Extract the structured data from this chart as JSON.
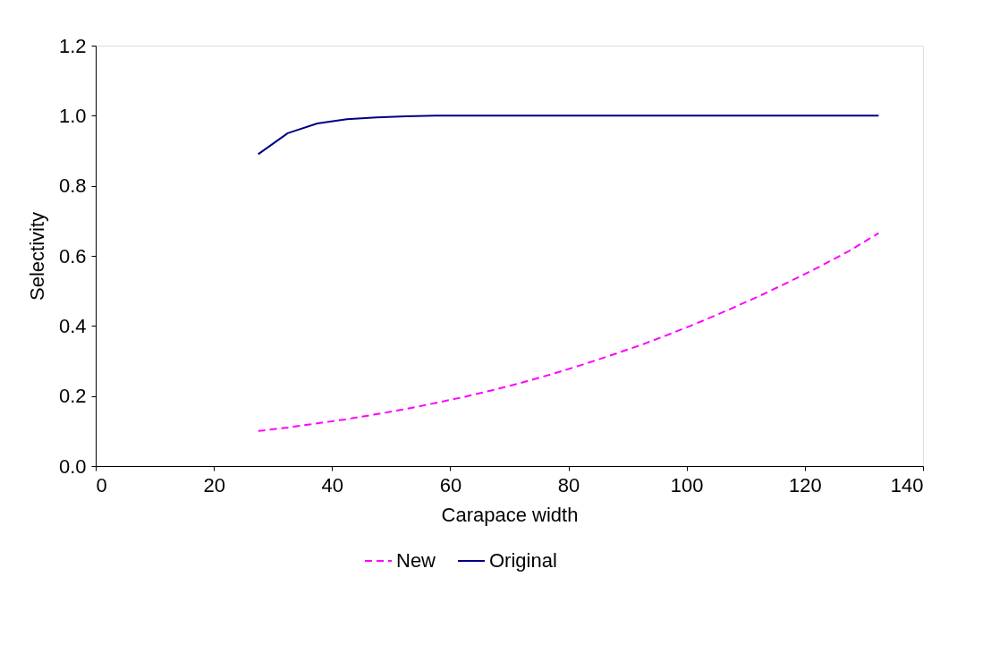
{
  "chart_data": {
    "type": "line",
    "xlabel": "Carapace width",
    "ylabel": "Selectivity",
    "xlim": [
      0,
      140
    ],
    "xticks": [
      0,
      20,
      40,
      60,
      80,
      100,
      120,
      140
    ],
    "ylim": [
      0,
      1.2
    ],
    "yticks": [
      {
        "value": 0,
        "label": "0.0"
      },
      {
        "value": 0.2,
        "label": "0.2"
      },
      {
        "value": 0.4,
        "label": "0.4"
      },
      {
        "value": 0.6,
        "label": "0.6"
      },
      {
        "value": 0.8,
        "label": "0.8"
      },
      {
        "value": 1.0,
        "label": "1.0"
      },
      {
        "value": 1.2,
        "label": "1.2"
      }
    ],
    "x": [
      27.5,
      32.5,
      37.5,
      42.5,
      47.5,
      52.5,
      57.5,
      62.5,
      67.5,
      72.5,
      77.5,
      82.5,
      87.5,
      92.5,
      97.5,
      102.5,
      107.5,
      112.5,
      117.5,
      122.5,
      127.5,
      132.5
    ],
    "grid": false,
    "legend": "bottom",
    "marker": "none",
    "series": [
      {
        "name": "New",
        "color": "#ff00ff",
        "line_style": "dashed",
        "values": [
          0.1,
          0.11,
          0.122,
          0.134,
          0.148,
          0.163,
          0.18,
          0.198,
          0.218,
          0.24,
          0.264,
          0.29,
          0.318,
          0.347,
          0.379,
          0.413,
          0.449,
          0.487,
          0.527,
          0.569,
          0.614,
          0.665
        ]
      },
      {
        "name": "Original",
        "color": "#000080",
        "line_style": "solid",
        "values": [
          0.89,
          0.95,
          0.978,
          0.99,
          0.995,
          0.998,
          1.0,
          1.0,
          1.0,
          1.0,
          1.0,
          1.0,
          1.0,
          1.0,
          1.0,
          1.0,
          1.0,
          1.0,
          1.0,
          1.0,
          1.0,
          1.0
        ]
      }
    ]
  }
}
